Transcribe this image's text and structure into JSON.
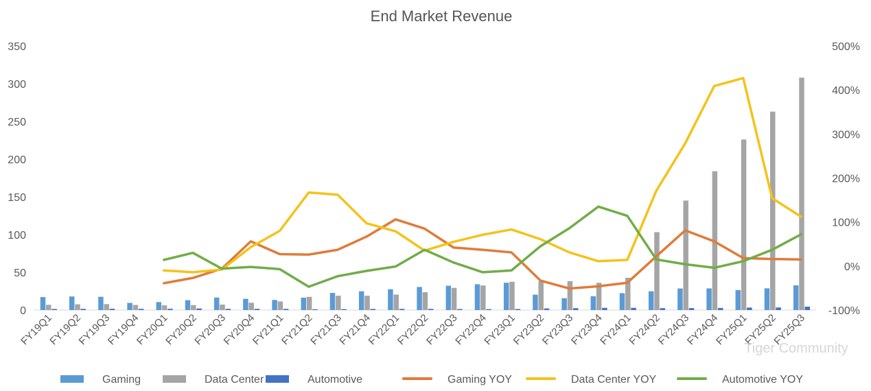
{
  "chart_data": {
    "type": "bar+line",
    "title": "End Market Revenue",
    "categories": [
      "FY19Q1",
      "FY19Q2",
      "FY19Q3",
      "FY19Q4",
      "FY20Q1",
      "FY20Q2",
      "FY20Q3",
      "FY20Q4",
      "FY21Q1",
      "FY21Q2",
      "FY21Q3",
      "FY21Q4",
      "FY22Q1",
      "FY22Q2",
      "FY22Q3",
      "FY22Q4",
      "FY23Q1",
      "FY23Q2",
      "FY23Q3",
      "FY23Q4",
      "FY24Q1",
      "FY24Q2",
      "FY24Q3",
      "FY24Q4",
      "FY25Q1",
      "FY25Q2",
      "FY25Q3"
    ],
    "left_axis": {
      "ylim": [
        0,
        350
      ],
      "ticks": [
        "0",
        "50",
        "100",
        "150",
        "200",
        "250",
        "300",
        "350"
      ]
    },
    "right_axis": {
      "ylim": [
        -100,
        500
      ],
      "ticks": [
        "-100%",
        "0%",
        "100%",
        "200%",
        "300%",
        "400%",
        "500%"
      ]
    },
    "bar_series": [
      {
        "name": "Gaming",
        "color": "#5b9bd5",
        "values": [
          17.2,
          18.0,
          17.6,
          9.5,
          10.6,
          13.1,
          16.6,
          14.9,
          13.4,
          16.5,
          22.7,
          24.9,
          27.6,
          30.6,
          32.2,
          34.2,
          36.2,
          20.4,
          15.7,
          18.3,
          22.4,
          24.9,
          28.6,
          28.7,
          26.5,
          28.8,
          32.8
        ]
      },
      {
        "name": "Data Center",
        "color": "#a5a5a5",
        "values": [
          7.0,
          7.6,
          7.9,
          6.8,
          6.3,
          6.6,
          7.3,
          9.7,
          11.4,
          17.5,
          19.0,
          19.0,
          20.5,
          23.7,
          29.4,
          32.6,
          37.5,
          38.1,
          38.3,
          36.2,
          42.8,
          103.2,
          145.1,
          184.0,
          226.0,
          263.0,
          308.0
        ]
      },
      {
        "name": "Automotive",
        "color": "#4472c4",
        "values": [
          1.45,
          1.61,
          1.72,
          1.63,
          1.66,
          2.09,
          1.62,
          1.63,
          1.55,
          1.11,
          1.25,
          1.45,
          1.54,
          1.52,
          1.35,
          1.25,
          1.38,
          2.2,
          2.51,
          2.94,
          2.96,
          2.53,
          2.61,
          2.81,
          3.29,
          3.46,
          4.49
        ]
      }
    ],
    "line_series": [
      {
        "name": "Gaming YOY",
        "color": "#e07b39",
        "unit": "%",
        "values": [
          null,
          null,
          null,
          null,
          -39,
          -27,
          -6,
          56,
          27,
          26,
          37,
          67,
          106,
          85,
          42,
          37,
          31,
          -33,
          -51,
          -46,
          -38,
          22,
          81,
          56,
          18,
          16,
          15
        ]
      },
      {
        "name": "Data Center YOY",
        "color": "#f5c21b",
        "unit": "%",
        "values": [
          null,
          null,
          null,
          null,
          -10,
          -14,
          -8,
          43,
          80,
          167,
          162,
          97,
          79,
          35,
          55,
          71,
          83,
          61,
          31,
          11,
          14,
          171,
          279,
          409,
          427,
          154,
          112
        ]
      },
      {
        "name": "Automotive YOY",
        "color": "#70ad47",
        "unit": "%",
        "values": [
          null,
          null,
          null,
          null,
          14,
          30,
          -6,
          -2,
          -7,
          -47,
          -23,
          -11,
          -1,
          37,
          8,
          -14,
          -10,
          45,
          86,
          135,
          114,
          15,
          4,
          -4,
          11,
          37,
          72
        ]
      }
    ],
    "legend": {
      "placement": "bottom",
      "entries": [
        "Gaming",
        "Data Center",
        "Automotive",
        "Gaming YOY",
        "Data Center YOY",
        "Automotive YOY"
      ]
    },
    "grid": false,
    "watermark": "Tiger Community"
  }
}
